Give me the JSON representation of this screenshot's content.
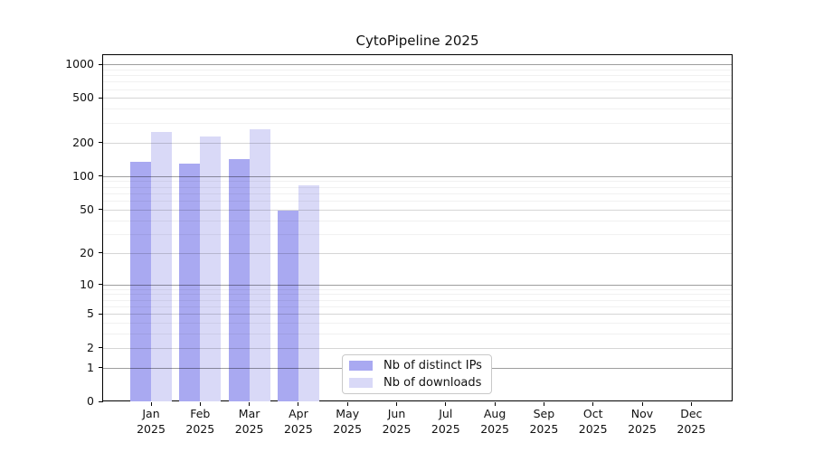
{
  "chart_data": {
    "type": "bar",
    "title": "CytoPipeline 2025",
    "x_categories": [
      "Jan",
      "Feb",
      "Mar",
      "Apr",
      "May",
      "Jun",
      "Jul",
      "Aug",
      "Sep",
      "Oct",
      "Nov",
      "Dec"
    ],
    "x_year_label": "2025",
    "series": [
      {
        "name": "Nb of distinct IPs",
        "color": "#a9a9f1",
        "values": [
          134,
          129,
          143,
          49,
          null,
          null,
          null,
          null,
          null,
          null,
          null,
          null
        ]
      },
      {
        "name": "Nb of downloads",
        "color": "#d9d9f7",
        "values": [
          248,
          226,
          262,
          83,
          null,
          null,
          null,
          null,
          null,
          null,
          null,
          null
        ]
      }
    ],
    "y_scale": "log1p",
    "y_ticks": [
      0,
      1,
      2,
      5,
      10,
      20,
      50,
      100,
      200,
      500,
      1000
    ],
    "y_minor_ticks": [
      3,
      4,
      6,
      7,
      8,
      9,
      30,
      40,
      60,
      70,
      80,
      90,
      300,
      400,
      600,
      700,
      800,
      900
    ],
    "ylim": [
      0,
      1226
    ],
    "grid": "horizontal",
    "legend_position": "lower center"
  },
  "colors": {
    "background": "#ffffff",
    "spine": "#000000",
    "bar_distinct_ips": "#a9a9f1",
    "bar_downloads": "#d9d9f7",
    "legend_border": "#c9c9c9"
  }
}
